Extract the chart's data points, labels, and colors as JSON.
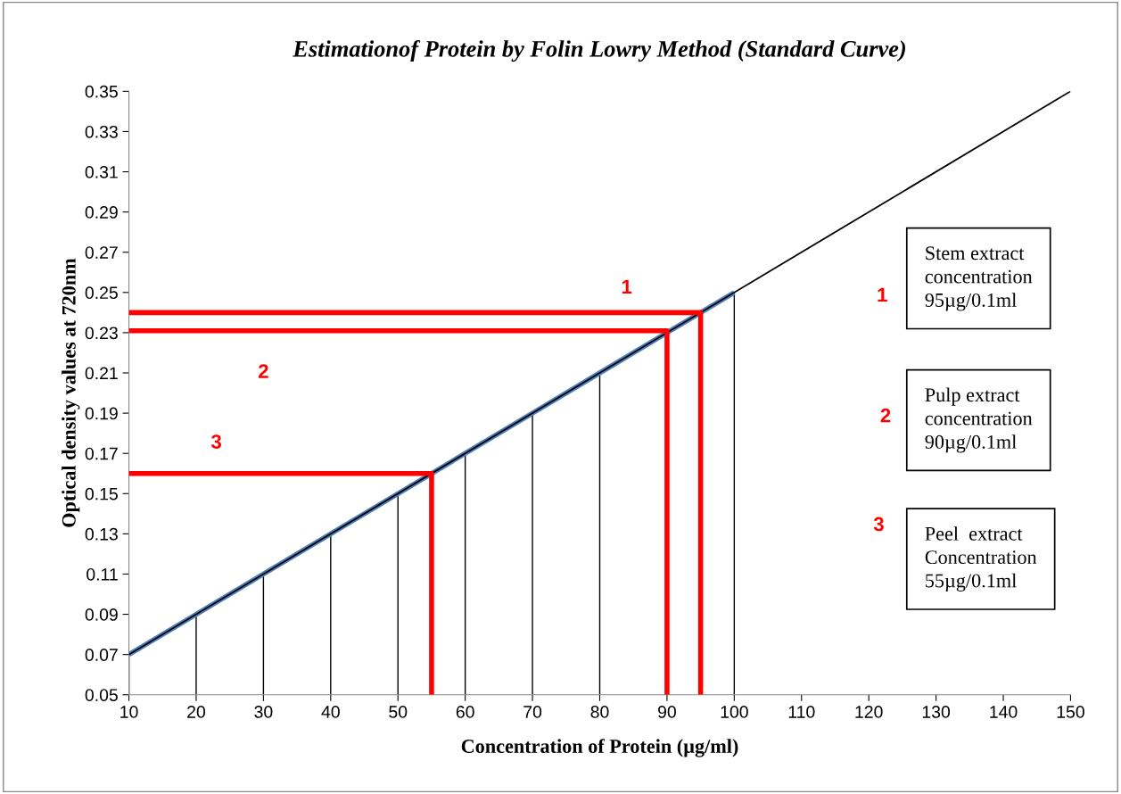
{
  "chart_data": {
    "type": "line",
    "title": "Estimationof Protein by Folin Lowry Method (Standard Curve)",
    "xlabel": "Concentration of Protein (µg/ml)",
    "ylabel": "Optical density values at 720nm",
    "xlim": [
      10,
      150
    ],
    "ylim": [
      0.05,
      0.35
    ],
    "xticks": [
      10,
      20,
      30,
      40,
      50,
      60,
      70,
      80,
      90,
      100,
      110,
      120,
      130,
      140,
      150
    ],
    "yticks": [
      0.05,
      0.07,
      0.09,
      0.11,
      0.13,
      0.15,
      0.17,
      0.19,
      0.21,
      0.23,
      0.25,
      0.27,
      0.29,
      0.31,
      0.33,
      0.35
    ],
    "grid": false,
    "legend": false,
    "marker": "none",
    "line_style": "solid",
    "series": [
      {
        "color": "#4f81bd",
        "x": [
          10,
          20,
          30,
          40,
          50,
          60,
          70,
          80,
          90,
          100
        ],
        "values": [
          0.07,
          0.09,
          0.11,
          0.13,
          0.15,
          0.17,
          0.19,
          0.21,
          0.23,
          0.25
        ],
        "errors": [
          [
            0.05,
            0.07
          ],
          [
            0.05,
            0.09
          ],
          [
            0.05,
            0.11
          ],
          [
            0.05,
            0.13
          ],
          [
            0.05,
            0.15
          ],
          [
            0.05,
            0.17
          ],
          [
            0.05,
            0.19
          ],
          [
            0.05,
            0.21
          ],
          [
            0.05,
            0.23
          ],
          [
            0.05,
            0.25
          ]
        ]
      },
      {
        "color": "#000000",
        "x": [
          10,
          150
        ],
        "values": [
          0.07,
          0.35
        ]
      },
      {
        "color": "#ff0000",
        "x": [
          10,
          95,
          95
        ],
        "values": [
          0.24,
          0.24,
          0.05
        ]
      },
      {
        "color": "#ff0000",
        "x": [
          10,
          90,
          90
        ],
        "values": [
          0.231,
          0.231,
          0.05
        ]
      },
      {
        "color": "#ff0000",
        "x": [
          10,
          55,
          55
        ],
        "values": [
          0.16,
          0.16,
          0.05
        ]
      }
    ],
    "annotations": [
      "1",
      "2",
      "3",
      "1",
      "2",
      "3",
      "Stem extract\nconcentration\n95µg/0.1ml",
      "Pulp extract\nconcentration\n90µg/0.1ml",
      "Peel  extract\nConcentration\n55µg/0.1ml"
    ]
  }
}
